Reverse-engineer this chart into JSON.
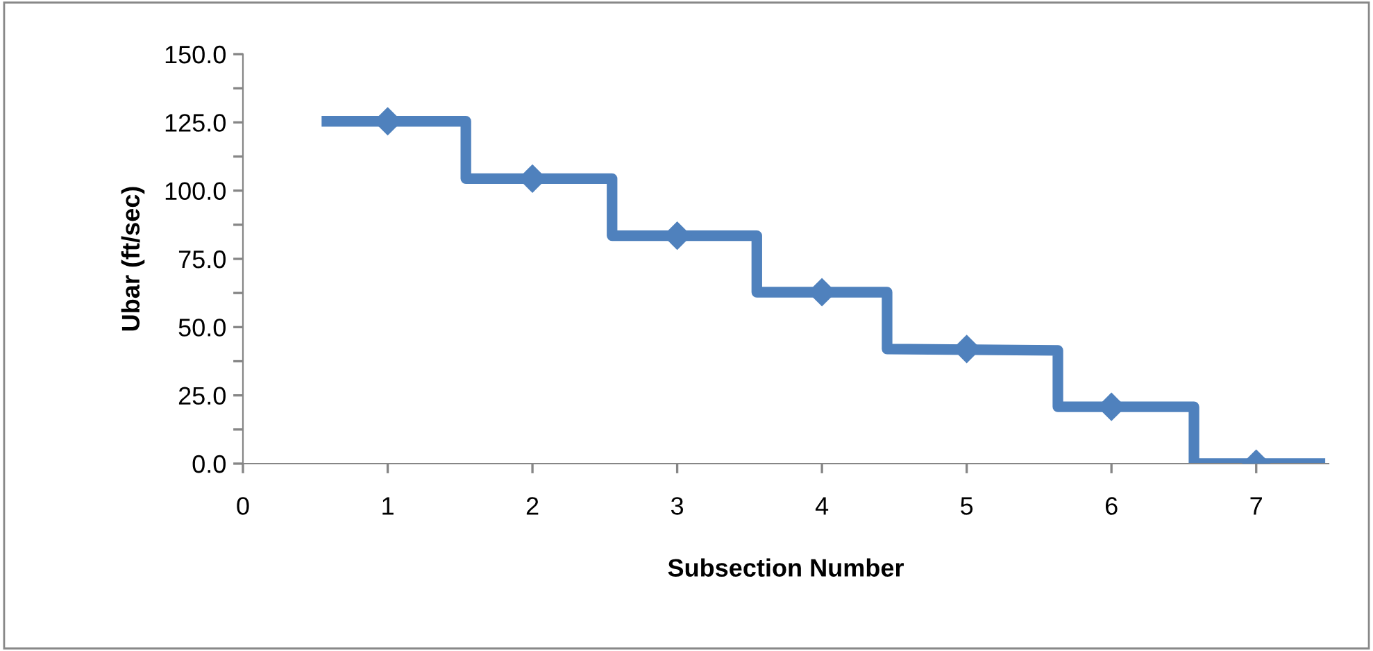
{
  "chart_data": {
    "type": "line",
    "xlabel": "Subsection Number",
    "ylabel": "Ubar (ft/sec)",
    "series": [
      {
        "color": "#4f81bd",
        "marker": "none",
        "x": [
          0.58,
          1.54,
          1.54,
          2.55,
          2.55,
          3.55,
          3.55,
          4.45,
          4.45,
          5.63,
          5.63,
          6.57,
          6.57,
          7.44
        ],
        "values": [
          125.4,
          125.4,
          104.4,
          104.4,
          83.5,
          83.5,
          62.8,
          62.8,
          42,
          41.5,
          20.8,
          20.8,
          0,
          0
        ]
      },
      {
        "type": "scatter",
        "color": "#4f81bd",
        "marker": "diamond",
        "x": [
          1,
          2,
          3,
          4,
          5,
          6,
          7
        ],
        "values": [
          125.4,
          104.4,
          83.5,
          62.8,
          42,
          20.8,
          0
        ]
      }
    ],
    "xlim": [
      0,
      7.5
    ],
    "xticks": [
      0,
      1,
      2,
      3,
      4,
      5,
      6,
      7
    ],
    "ylim": [
      0,
      150
    ],
    "yticks": [
      {
        "value": 0,
        "label": "0.0"
      },
      {
        "value": 12.5,
        "label": null
      },
      {
        "value": 25,
        "label": "25.0"
      },
      {
        "value": 37.5,
        "label": null
      },
      {
        "value": 50,
        "label": "50.0"
      },
      {
        "value": 62.5,
        "label": null
      },
      {
        "value": 75,
        "label": "75.0"
      },
      {
        "value": 87.5,
        "label": null
      },
      {
        "value": 100,
        "label": "100.0"
      },
      {
        "value": 112.5,
        "label": null
      },
      {
        "value": 125,
        "label": "125.0"
      },
      {
        "value": 137.5,
        "label": null
      },
      {
        "value": 150,
        "label": "150.0"
      }
    ],
    "grid": false,
    "legend": false
  }
}
